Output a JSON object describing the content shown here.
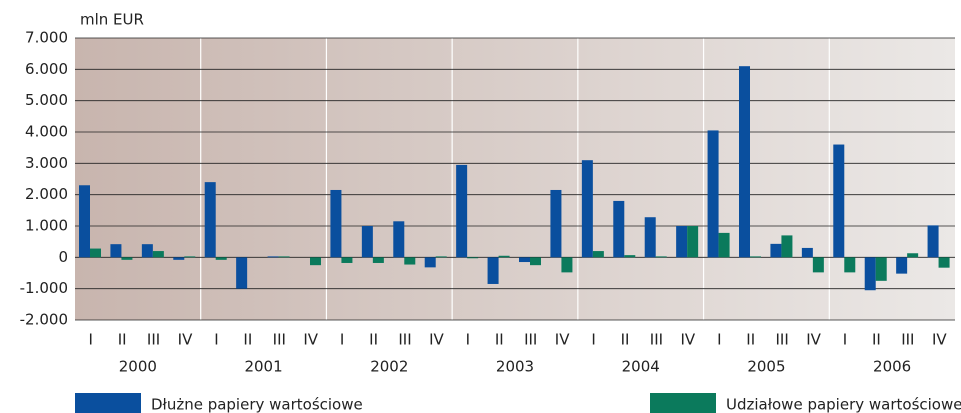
{
  "chart_data": {
    "type": "bar",
    "ylabel": "mln EUR",
    "categories": [
      "I",
      "II",
      "III",
      "IV",
      "I",
      "II",
      "III",
      "IV",
      "I",
      "II",
      "III",
      "IV",
      "I",
      "II",
      "III",
      "IV",
      "I",
      "II",
      "III",
      "IV",
      "I",
      "II",
      "III",
      "IV",
      "I",
      "II",
      "III",
      "IV"
    ],
    "groups": [
      "2000",
      "2001",
      "2002",
      "2003",
      "2004",
      "2005",
      "2006"
    ],
    "series": [
      {
        "name": "Dłużne papiery wartościowe",
        "color": "#0a4f9e",
        "values": [
          2300,
          420,
          420,
          -80,
          2400,
          -1000,
          30,
          0,
          2150,
          1000,
          1150,
          -320,
          2950,
          -850,
          -150,
          2150,
          3100,
          1800,
          1280,
          1000,
          4050,
          6100,
          430,
          300,
          3600,
          -1050,
          -520,
          1020
        ]
      },
      {
        "name": "Udziałowe papiery wartościowe",
        "color": "#0b7a5c",
        "values": [
          280,
          -80,
          200,
          30,
          -80,
          0,
          30,
          -250,
          -180,
          -180,
          -230,
          30,
          -30,
          50,
          -250,
          -480,
          200,
          70,
          30,
          1000,
          780,
          30,
          700,
          -480,
          -480,
          -750,
          130,
          -330
        ]
      }
    ],
    "ylim": [
      -2000,
      7000
    ],
    "yticks": [
      {
        "value": -2000,
        "label": "-2.000"
      },
      {
        "value": -1000,
        "label": "-1.000"
      },
      0,
      {
        "value": 1000,
        "label": "1.000"
      },
      {
        "value": 2000,
        "label": "2.000"
      },
      {
        "value": 3000,
        "label": "3.000"
      },
      {
        "value": 4000,
        "label": "4.000"
      },
      {
        "value": 5000,
        "label": "5.000"
      },
      {
        "value": 6000,
        "label": "6.000"
      },
      {
        "value": 7000,
        "label": "7.000"
      }
    ],
    "grid": true
  }
}
